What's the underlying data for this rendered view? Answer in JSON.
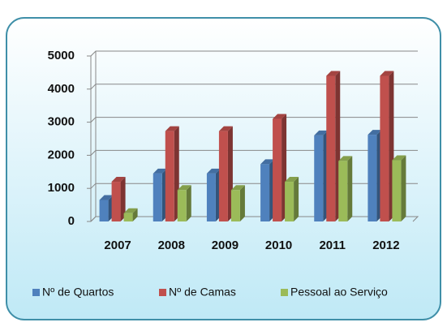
{
  "chart_data": {
    "type": "bar3d",
    "categories": [
      "2007",
      "2008",
      "2009",
      "2010",
      "2011",
      "2012"
    ],
    "series": [
      {
        "name": "Nº de Quartos",
        "color": "#4f81bd",
        "values": [
          650,
          1450,
          1450,
          1730,
          2600,
          2620
        ]
      },
      {
        "name": "Nº de Camas",
        "color": "#c0504d",
        "values": [
          1200,
          2730,
          2730,
          3100,
          4400,
          4400
        ]
      },
      {
        "name": "Pessoal ao Serviço",
        "color": "#9bbb59",
        "values": [
          250,
          950,
          950,
          1200,
          1830,
          1850
        ]
      }
    ],
    "ylim": [
      0,
      5000
    ],
    "yticks": [
      0,
      1000,
      2000,
      3000,
      4000,
      5000
    ],
    "grid": true,
    "legend": "bottom"
  }
}
